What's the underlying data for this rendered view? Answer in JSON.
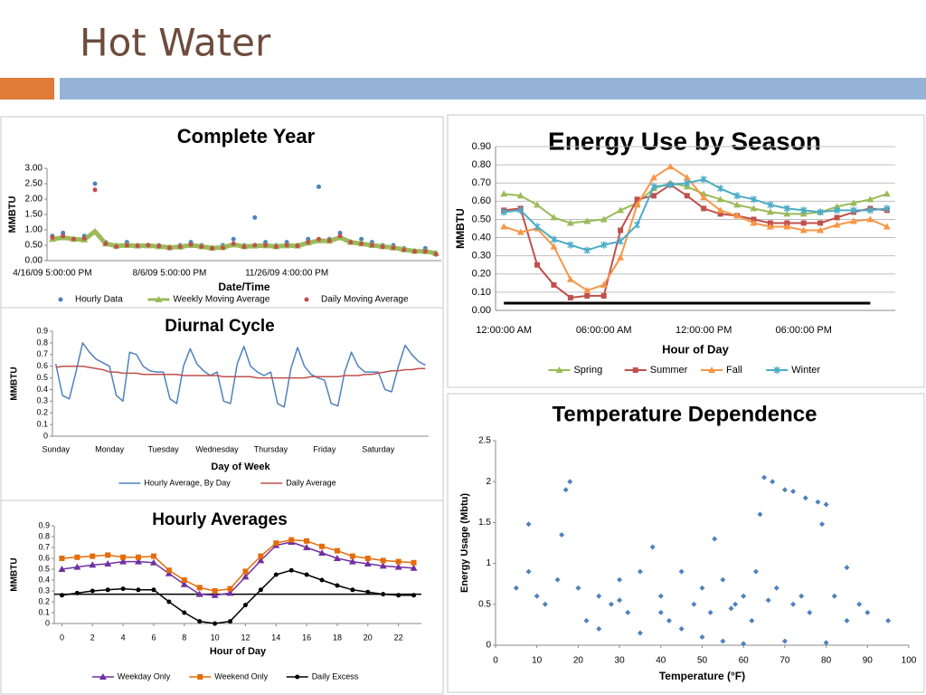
{
  "title": "Hot Water",
  "chart_data": [
    {
      "type": "line",
      "title": "Complete Year",
      "x_label": "Date/Time",
      "y_label": "MMBTU",
      "grid": false,
      "legend": "bottom",
      "categories": [
        "4/16/09 5:00:00 PM",
        null,
        null,
        null,
        null,
        null,
        null,
        null,
        null,
        null,
        null,
        "8/6/09 5:00:00 PM",
        null,
        null,
        null,
        null,
        null,
        null,
        null,
        null,
        null,
        null,
        "11/26/09 4:00:00 PM",
        null,
        null,
        null,
        null,
        null,
        null,
        null,
        null,
        null,
        null,
        null,
        null,
        null,
        null
      ],
      "ylim": [
        0,
        3
      ],
      "yticks": [
        {
          "value": 0,
          "label": "0.00"
        },
        {
          "value": 0.5,
          "label": "0.50"
        },
        {
          "value": 1,
          "label": "1.00"
        },
        {
          "value": 1.5,
          "label": "1.50"
        },
        {
          "value": 2,
          "label": "2.00"
        },
        {
          "value": 2.5,
          "label": "2.50"
        },
        {
          "value": 3,
          "label": "3.00"
        }
      ],
      "series": [
        {
          "name": "Hourly Data",
          "color": "#4f81bd",
          "marker": "dot",
          "line_width": 0,
          "values": [
            0.8,
            0.9,
            0.7,
            0.8,
            2.5,
            0.6,
            0.5,
            0.6,
            0.5,
            0.5,
            0.5,
            0.4,
            0.5,
            0.6,
            0.5,
            0.4,
            0.5,
            0.7,
            0.5,
            1.4,
            0.6,
            0.5,
            0.6,
            0.5,
            0.7,
            2.4,
            0.7,
            0.9,
            0.6,
            0.7,
            0.6,
            0.5,
            0.5,
            0.4,
            0.3,
            0.4,
            0.2
          ]
        },
        {
          "name": "Weekly Moving Average",
          "color": "#9bbb59",
          "marker": "triangle",
          "line_width": 5,
          "values": [
            0.7,
            0.75,
            0.7,
            0.68,
            0.95,
            0.55,
            0.48,
            0.5,
            0.48,
            0.49,
            0.46,
            0.43,
            0.45,
            0.5,
            0.46,
            0.41,
            0.43,
            0.52,
            0.46,
            0.48,
            0.49,
            0.46,
            0.49,
            0.48,
            0.58,
            0.65,
            0.64,
            0.75,
            0.6,
            0.55,
            0.5,
            0.46,
            0.42,
            0.36,
            0.31,
            0.3,
            0.24
          ]
        },
        {
          "name": "Daily Moving Average",
          "color": "#c0504d",
          "marker": "dot",
          "line_width": 0,
          "values": [
            0.75,
            0.8,
            0.7,
            0.72,
            2.3,
            0.55,
            0.45,
            0.5,
            0.48,
            0.5,
            0.47,
            0.42,
            0.45,
            0.52,
            0.45,
            0.4,
            0.42,
            0.55,
            0.45,
            0.5,
            0.5,
            0.45,
            0.5,
            0.48,
            0.6,
            0.7,
            0.65,
            0.8,
            0.6,
            0.55,
            0.5,
            0.45,
            0.42,
            0.35,
            0.3,
            0.3,
            0.22
          ]
        }
      ]
    },
    {
      "type": "line",
      "title": "Energy Use by Season",
      "x_label": "Hour of Day",
      "y_label": "MMBTU",
      "grid": true,
      "legend": "bottom",
      "reference_line": 0.04,
      "categories": [
        "12:00:00 AM",
        null,
        null,
        null,
        null,
        null,
        "06:00:00 AM",
        null,
        null,
        null,
        null,
        null,
        "12:00:00 PM",
        null,
        null,
        null,
        null,
        null,
        "06:00:00 PM",
        null,
        null,
        null,
        null,
        null
      ],
      "ylim": [
        0,
        0.9
      ],
      "yticks": [
        {
          "value": 0,
          "label": "0.00"
        },
        {
          "value": 0.1,
          "label": "0.10"
        },
        {
          "value": 0.2,
          "label": "0.20"
        },
        {
          "value": 0.3,
          "label": "0.30"
        },
        {
          "value": 0.4,
          "label": "0.40"
        },
        {
          "value": 0.5,
          "label": "0.50"
        },
        {
          "value": 0.6,
          "label": "0.60"
        },
        {
          "value": 0.7,
          "label": "0.70"
        },
        {
          "value": 0.8,
          "label": "0.80"
        },
        {
          "value": 0.9,
          "label": "0.90"
        }
      ],
      "series": [
        {
          "name": "Spring",
          "color": "#9bbb59",
          "marker": "triangle",
          "line_width": 2,
          "values": [
            0.64,
            0.63,
            0.58,
            0.51,
            0.48,
            0.49,
            0.5,
            0.55,
            0.59,
            0.67,
            0.7,
            0.68,
            0.64,
            0.61,
            0.58,
            0.56,
            0.54,
            0.53,
            0.53,
            0.54,
            0.57,
            0.59,
            0.61,
            0.64
          ]
        },
        {
          "name": "Summer",
          "color": "#c0504d",
          "marker": "square",
          "line_width": 2,
          "values": [
            0.55,
            0.56,
            0.25,
            0.14,
            0.07,
            0.08,
            0.08,
            0.44,
            0.61,
            0.63,
            0.69,
            0.63,
            0.56,
            0.53,
            0.52,
            0.5,
            0.48,
            0.48,
            0.48,
            0.48,
            0.51,
            0.54,
            0.56,
            0.55
          ]
        },
        {
          "name": "Fall",
          "color": "#f79646",
          "marker": "triangle",
          "line_width": 2,
          "values": [
            0.46,
            0.43,
            0.45,
            0.35,
            0.17,
            0.11,
            0.14,
            0.29,
            0.58,
            0.73,
            0.79,
            0.73,
            0.62,
            0.55,
            0.52,
            0.48,
            0.46,
            0.46,
            0.44,
            0.44,
            0.47,
            0.49,
            0.5,
            0.46
          ]
        },
        {
          "name": "Winter",
          "color": "#4bacc6",
          "marker": "star",
          "line_width": 2,
          "values": [
            0.54,
            0.55,
            0.46,
            0.39,
            0.36,
            0.33,
            0.36,
            0.38,
            0.47,
            0.68,
            0.69,
            0.7,
            0.72,
            0.67,
            0.63,
            0.61,
            0.58,
            0.56,
            0.55,
            0.54,
            0.55,
            0.55,
            0.55,
            0.56
          ]
        }
      ]
    },
    {
      "type": "line",
      "title": "Diurnal Cycle",
      "x_label": "Day of Week",
      "y_label": "MMBTU",
      "grid": false,
      "legend": "bottom",
      "categories": [
        "Sunday",
        null,
        null,
        null,
        null,
        null,
        null,
        null,
        "Monday",
        null,
        null,
        null,
        null,
        null,
        null,
        null,
        "Tuesday",
        null,
        null,
        null,
        null,
        null,
        null,
        null,
        "Wednesday",
        null,
        null,
        null,
        null,
        null,
        null,
        null,
        "Thursday",
        null,
        null,
        null,
        null,
        null,
        null,
        null,
        "Friday",
        null,
        null,
        null,
        null,
        null,
        null,
        null,
        "Saturday",
        null,
        null,
        null,
        null,
        null,
        null,
        null
      ],
      "ylim": [
        0,
        0.9
      ],
      "yticks": [
        0,
        0.1,
        0.2,
        0.3,
        0.4,
        0.5,
        0.6,
        0.7,
        0.8,
        0.9
      ],
      "series": [
        {
          "name": "Hourly Average, By Day",
          "color": "#4f81bd",
          "line_width": 1.5,
          "values": [
            0.62,
            0.35,
            0.32,
            0.55,
            0.8,
            0.72,
            0.66,
            0.63,
            0.6,
            0.35,
            0.3,
            0.72,
            0.7,
            0.6,
            0.56,
            0.55,
            0.55,
            0.32,
            0.28,
            0.6,
            0.75,
            0.62,
            0.56,
            0.52,
            0.55,
            0.3,
            0.28,
            0.62,
            0.77,
            0.6,
            0.55,
            0.52,
            0.55,
            0.28,
            0.25,
            0.58,
            0.76,
            0.6,
            0.53,
            0.5,
            0.48,
            0.28,
            0.26,
            0.55,
            0.72,
            0.6,
            0.55,
            0.55,
            0.55,
            0.4,
            0.38,
            0.6,
            0.78,
            0.7,
            0.64,
            0.61
          ]
        },
        {
          "name": "Daily Average",
          "color": "#c0504d",
          "line_width": 1.5,
          "values": [
            0.59,
            0.6,
            0.6,
            0.6,
            0.6,
            0.59,
            0.58,
            0.57,
            0.55,
            0.55,
            0.54,
            0.54,
            0.54,
            0.53,
            0.53,
            0.53,
            0.53,
            0.53,
            0.53,
            0.52,
            0.52,
            0.52,
            0.52,
            0.52,
            0.52,
            0.51,
            0.51,
            0.51,
            0.51,
            0.51,
            0.5,
            0.5,
            0.5,
            0.5,
            0.5,
            0.5,
            0.5,
            0.5,
            0.51,
            0.51,
            0.51,
            0.51,
            0.51,
            0.52,
            0.52,
            0.52,
            0.53,
            0.53,
            0.54,
            0.55,
            0.56,
            0.56,
            0.57,
            0.57,
            0.58,
            0.58
          ]
        }
      ]
    },
    {
      "type": "line",
      "title": "Hourly Averages",
      "x_label": "Hour of Day",
      "y_label": "MMBTU",
      "grid": false,
      "legend": "bottom",
      "reference_line": 0.27,
      "x": [
        0,
        1,
        2,
        3,
        4,
        5,
        6,
        7,
        8,
        9,
        10,
        11,
        12,
        13,
        14,
        15,
        16,
        17,
        18,
        19,
        20,
        21,
        22,
        23
      ],
      "xlim": [
        -0.5,
        23.5
      ],
      "xticks": [
        0,
        2,
        4,
        6,
        8,
        10,
        12,
        14,
        16,
        18,
        20,
        22
      ],
      "ylim": [
        0,
        0.9
      ],
      "yticks": [
        0,
        0.1,
        0.2,
        0.3,
        0.4,
        0.5,
        0.6,
        0.7,
        0.8,
        0.9
      ],
      "series": [
        {
          "name": "Weekday Only",
          "color": "#7030a0",
          "marker": "triangle",
          "line_width": 1.5,
          "values": [
            0.5,
            0.52,
            0.54,
            0.55,
            0.57,
            0.57,
            0.56,
            0.46,
            0.36,
            0.27,
            0.26,
            0.28,
            0.43,
            0.58,
            0.72,
            0.75,
            0.7,
            0.65,
            0.6,
            0.57,
            0.55,
            0.53,
            0.52,
            0.51
          ]
        },
        {
          "name": "Weekend Only",
          "color": "#e46c0a",
          "marker": "square",
          "line_width": 1.5,
          "values": [
            0.6,
            0.61,
            0.62,
            0.63,
            0.61,
            0.61,
            0.62,
            0.49,
            0.4,
            0.33,
            0.3,
            0.32,
            0.48,
            0.62,
            0.74,
            0.77,
            0.76,
            0.71,
            0.67,
            0.62,
            0.6,
            0.58,
            0.57,
            0.56
          ]
        },
        {
          "name": "Daily Excess",
          "color": "#000000",
          "marker": "dot",
          "line_width": 1.5,
          "values": [
            0.26,
            0.28,
            0.3,
            0.31,
            0.32,
            0.31,
            0.31,
            0.2,
            0.1,
            0.02,
            0.0,
            0.02,
            0.17,
            0.31,
            0.45,
            0.49,
            0.45,
            0.4,
            0.35,
            0.31,
            0.29,
            0.27,
            0.26,
            0.26
          ]
        }
      ]
    },
    {
      "type": "scatter",
      "title": "Temperature Dependence",
      "x_label": "Temperature (°F)",
      "y_label": "Energy Usage (Mbtu)",
      "grid": false,
      "color": "#4f81bd",
      "xlim": [
        0,
        100
      ],
      "xticks": [
        0,
        10,
        20,
        30,
        40,
        50,
        60,
        70,
        80,
        90,
        100
      ],
      "ylim": [
        0,
        2.5
      ],
      "yticks": [
        0,
        0.5,
        1,
        1.5,
        2,
        2.5
      ],
      "x": [
        5,
        8,
        10,
        12,
        15,
        17,
        18,
        16,
        8,
        20,
        22,
        25,
        28,
        30,
        32,
        35,
        38,
        40,
        42,
        45,
        48,
        50,
        52,
        53,
        55,
        58,
        60,
        62,
        64,
        65,
        67,
        70,
        72,
        75,
        78,
        80,
        79,
        85,
        88,
        90,
        95,
        63,
        68,
        72,
        76,
        82,
        85,
        45,
        50,
        55,
        60,
        70,
        80,
        35,
        25,
        40,
        30,
        57,
        66,
        74
      ],
      "y": [
        0.7,
        0.9,
        0.6,
        0.5,
        0.8,
        1.9,
        2.0,
        1.35,
        1.48,
        0.7,
        0.3,
        0.6,
        0.5,
        0.8,
        0.4,
        0.9,
        1.2,
        0.6,
        0.3,
        0.9,
        0.5,
        0.7,
        0.4,
        1.3,
        0.8,
        0.5,
        0.6,
        0.3,
        1.6,
        2.05,
        2.0,
        1.9,
        1.88,
        1.8,
        1.75,
        1.72,
        1.48,
        0.95,
        0.5,
        0.4,
        0.3,
        0.9,
        0.7,
        0.5,
        0.4,
        0.6,
        0.3,
        0.2,
        0.1,
        0.05,
        0.02,
        0.05,
        0.03,
        0.15,
        0.2,
        0.4,
        0.55,
        0.45,
        0.55,
        0.6
      ]
    }
  ]
}
